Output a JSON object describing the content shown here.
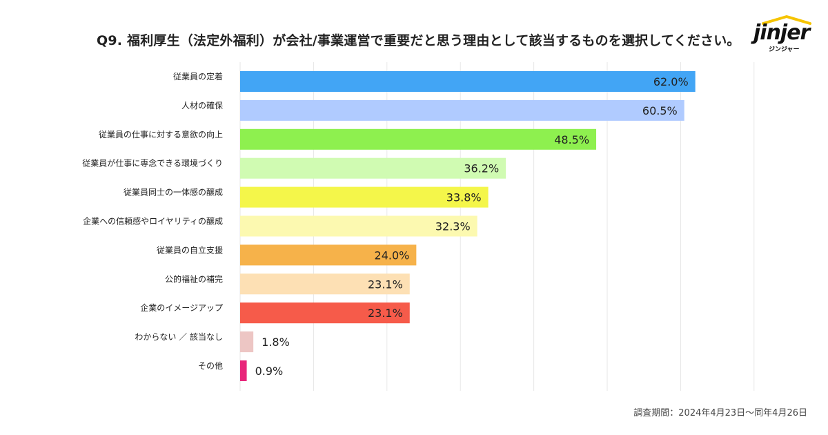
{
  "header": {
    "title": "Q9. 福利厚生（法定外福利）が会社/事業運営で重要だと思う理由として該当するものを選択してください。"
  },
  "logo": {
    "name": "jinjer",
    "sub": "ジンジャー"
  },
  "footnote": "調査期間：2024年4月23日〜同年4月26日",
  "chart_data": {
    "type": "bar",
    "orientation": "horizontal",
    "title": "Q9. 福利厚生（法定外福利）が会社/事業運営で重要だと思う理由として該当するものを選択してください。",
    "xlabel": "",
    "ylabel": "",
    "xlim": [
      0,
      70
    ],
    "grid": true,
    "categories": [
      "従業員の定着",
      "人材の確保",
      "従業員の仕事に対する意欲の向上",
      "従業員が仕事に専念できる環境づくり",
      "従業員同士の一体感の醸成",
      "企業への信頼感やロイヤリティの醸成",
      "従業員の自立支援",
      "公的福祉の補完",
      "企業のイメージアップ",
      "わからない ／ 該当なし",
      "その他"
    ],
    "values": [
      62.0,
      60.5,
      48.5,
      36.2,
      33.8,
      32.3,
      24.0,
      23.1,
      23.1,
      1.8,
      0.9
    ],
    "value_labels": [
      "62.0%",
      "60.5%",
      "48.5%",
      "36.2%",
      "33.8%",
      "32.3%",
      "24.0%",
      "23.1%",
      "23.1%",
      "1.8%",
      "0.9%"
    ],
    "colors": [
      "#42a5f5",
      "#b0cbff",
      "#8ef04f",
      "#d0fbb2",
      "#f4f64a",
      "#fcf9b0",
      "#f6b24a",
      "#fde0b4",
      "#f65b4a",
      "#edc6c4",
      "#e8257a"
    ]
  }
}
